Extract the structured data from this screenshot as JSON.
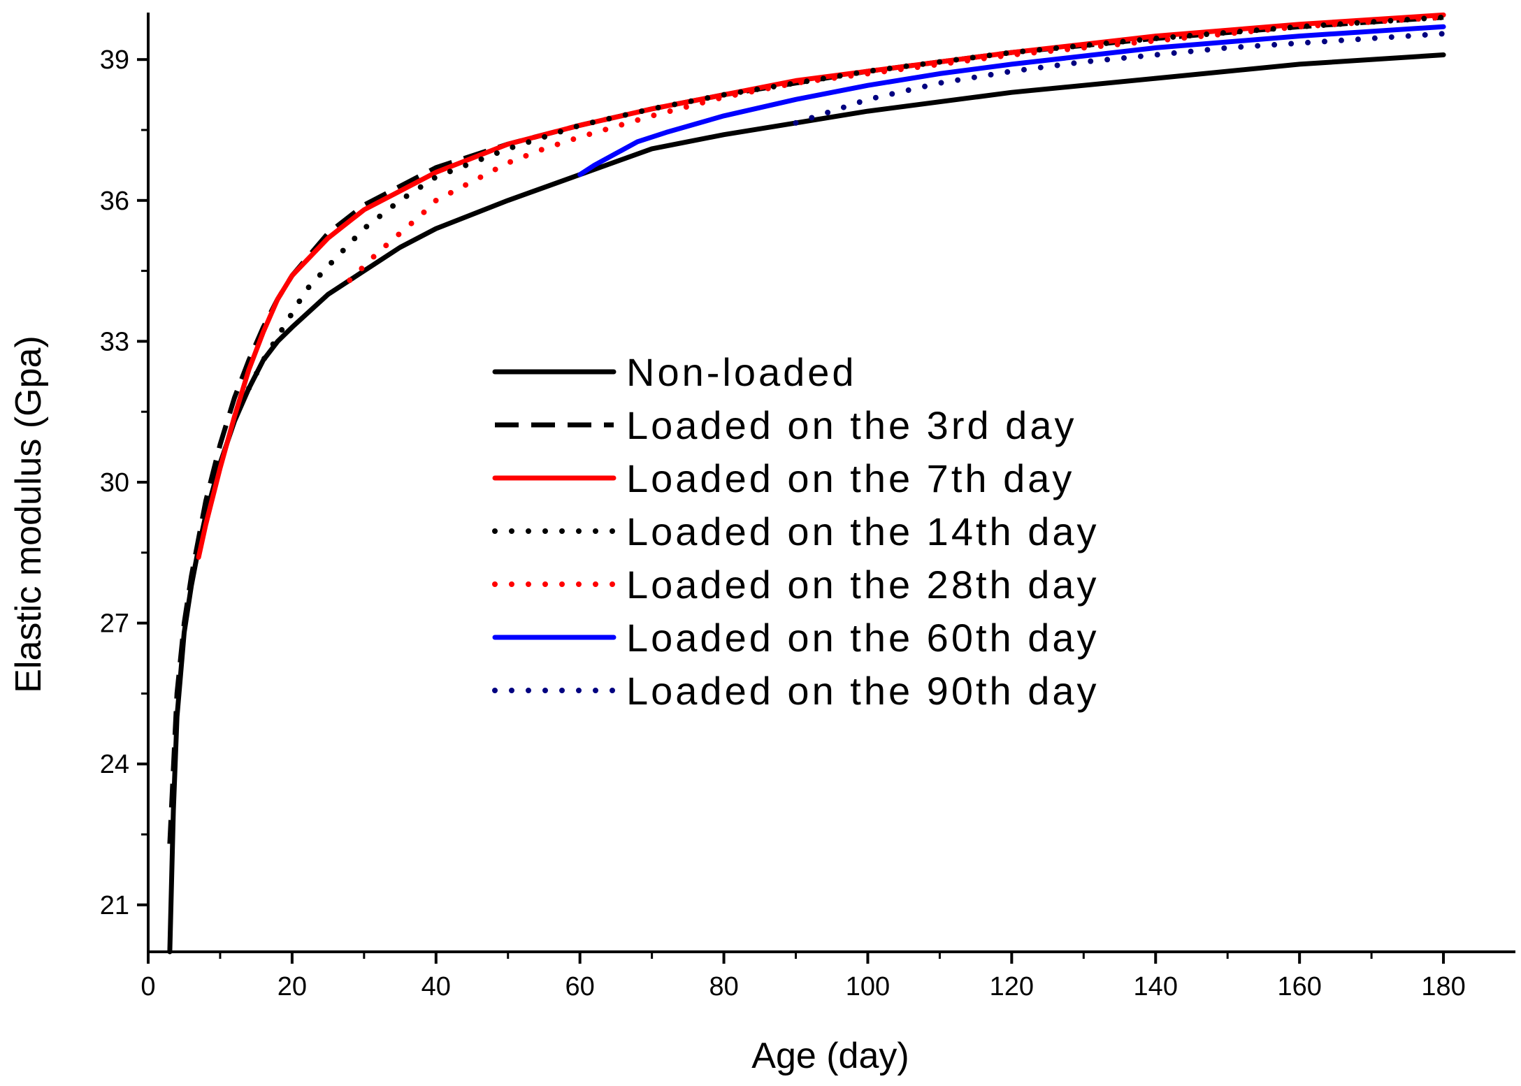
{
  "chart_data": {
    "type": "line",
    "title": "",
    "xlabel": "Age (day)",
    "ylabel": "Elastic modulus (Gpa)",
    "xlim": [
      0,
      190
    ],
    "ylim": [
      20,
      40
    ],
    "xticks": [
      0,
      20,
      40,
      60,
      80,
      100,
      120,
      140,
      160,
      180
    ],
    "yticks": [
      21,
      24,
      27,
      30,
      33,
      36,
      39
    ],
    "grid": false,
    "legend_position": "center",
    "series": [
      {
        "name": "Non-loaded",
        "color": "#000000",
        "dash": "solid",
        "x": [
          3,
          3.5,
          4,
          5,
          6,
          7,
          8,
          10,
          12,
          14,
          16,
          18,
          20,
          25,
          30,
          35,
          40,
          50,
          60,
          70,
          80,
          90,
          100,
          120,
          140,
          160,
          180
        ],
        "y": [
          20,
          23,
          25,
          26.8,
          27.8,
          28.6,
          29.3,
          30.4,
          31.3,
          32.0,
          32.6,
          33.0,
          33.3,
          34.0,
          34.5,
          35.0,
          35.4,
          36.0,
          36.55,
          37.1,
          37.4,
          37.65,
          37.9,
          38.3,
          38.6,
          38.9,
          39.1
        ]
      },
      {
        "name": "Loaded on the 3rd day",
        "color": "#000000",
        "dash": "long-dash",
        "x": [
          3,
          4,
          5,
          6,
          7,
          8,
          10,
          12,
          14,
          16,
          18,
          20,
          25,
          30,
          35,
          40,
          50,
          60,
          70,
          80,
          90,
          100,
          120,
          140,
          160,
          180
        ],
        "y": [
          22.3,
          25.5,
          27.0,
          28.0,
          28.8,
          29.6,
          30.8,
          31.8,
          32.6,
          33.3,
          33.9,
          34.4,
          35.3,
          35.9,
          36.3,
          36.7,
          37.2,
          37.6,
          37.95,
          38.25,
          38.5,
          38.75,
          39.15,
          39.45,
          39.7,
          39.9
        ]
      },
      {
        "name": "Loaded on the 7th day",
        "color": "#ff0000",
        "dash": "solid",
        "x": [
          7,
          8,
          10,
          12,
          14,
          16,
          18,
          20,
          25,
          30,
          35,
          40,
          50,
          60,
          70,
          80,
          90,
          100,
          120,
          140,
          160,
          180
        ],
        "y": [
          28.4,
          29.1,
          30.3,
          31.4,
          32.4,
          33.2,
          33.9,
          34.4,
          35.2,
          35.8,
          36.2,
          36.6,
          37.2,
          37.6,
          37.95,
          38.25,
          38.55,
          38.75,
          39.15,
          39.5,
          39.75,
          39.95
        ]
      },
      {
        "name": "Loaded on the 14th day",
        "color": "#000000",
        "dash": "dot",
        "x": [
          14,
          16,
          18,
          20,
          22,
          25,
          30,
          35,
          40,
          50,
          60,
          70,
          80,
          90,
          100,
          120,
          140,
          160,
          180
        ],
        "y": [
          32.0,
          32.6,
          33.1,
          33.6,
          34.1,
          34.6,
          35.4,
          36.0,
          36.5,
          37.1,
          37.6,
          37.95,
          38.25,
          38.5,
          38.75,
          39.15,
          39.45,
          39.7,
          39.9
        ]
      },
      {
        "name": "Loaded on the 28th day",
        "color": "#ff0000",
        "dash": "dot",
        "x": [
          28,
          30,
          32,
          35,
          38,
          40,
          45,
          50,
          55,
          60,
          70,
          80,
          90,
          100,
          120,
          140,
          160,
          180
        ],
        "y": [
          34.3,
          34.6,
          34.9,
          35.3,
          35.7,
          36.0,
          36.4,
          36.8,
          37.1,
          37.35,
          37.8,
          38.2,
          38.5,
          38.7,
          39.1,
          39.4,
          39.7,
          39.9
        ]
      },
      {
        "name": "Loaded on the 60th day",
        "color": "#0000ff",
        "dash": "solid",
        "x": [
          60,
          62,
          65,
          68,
          72,
          80,
          90,
          100,
          110,
          120,
          140,
          160,
          180
        ],
        "y": [
          36.55,
          36.75,
          37.0,
          37.25,
          37.45,
          37.8,
          38.15,
          38.45,
          38.7,
          38.9,
          39.25,
          39.5,
          39.7
        ]
      },
      {
        "name": "Loaded on the 90th day",
        "color": "#000080",
        "dash": "dot",
        "x": [
          90,
          95,
          100,
          110,
          120,
          130,
          140,
          150,
          160,
          170,
          180
        ],
        "y": [
          37.65,
          37.9,
          38.15,
          38.5,
          38.75,
          38.95,
          39.1,
          39.25,
          39.35,
          39.45,
          39.55
        ]
      }
    ]
  }
}
